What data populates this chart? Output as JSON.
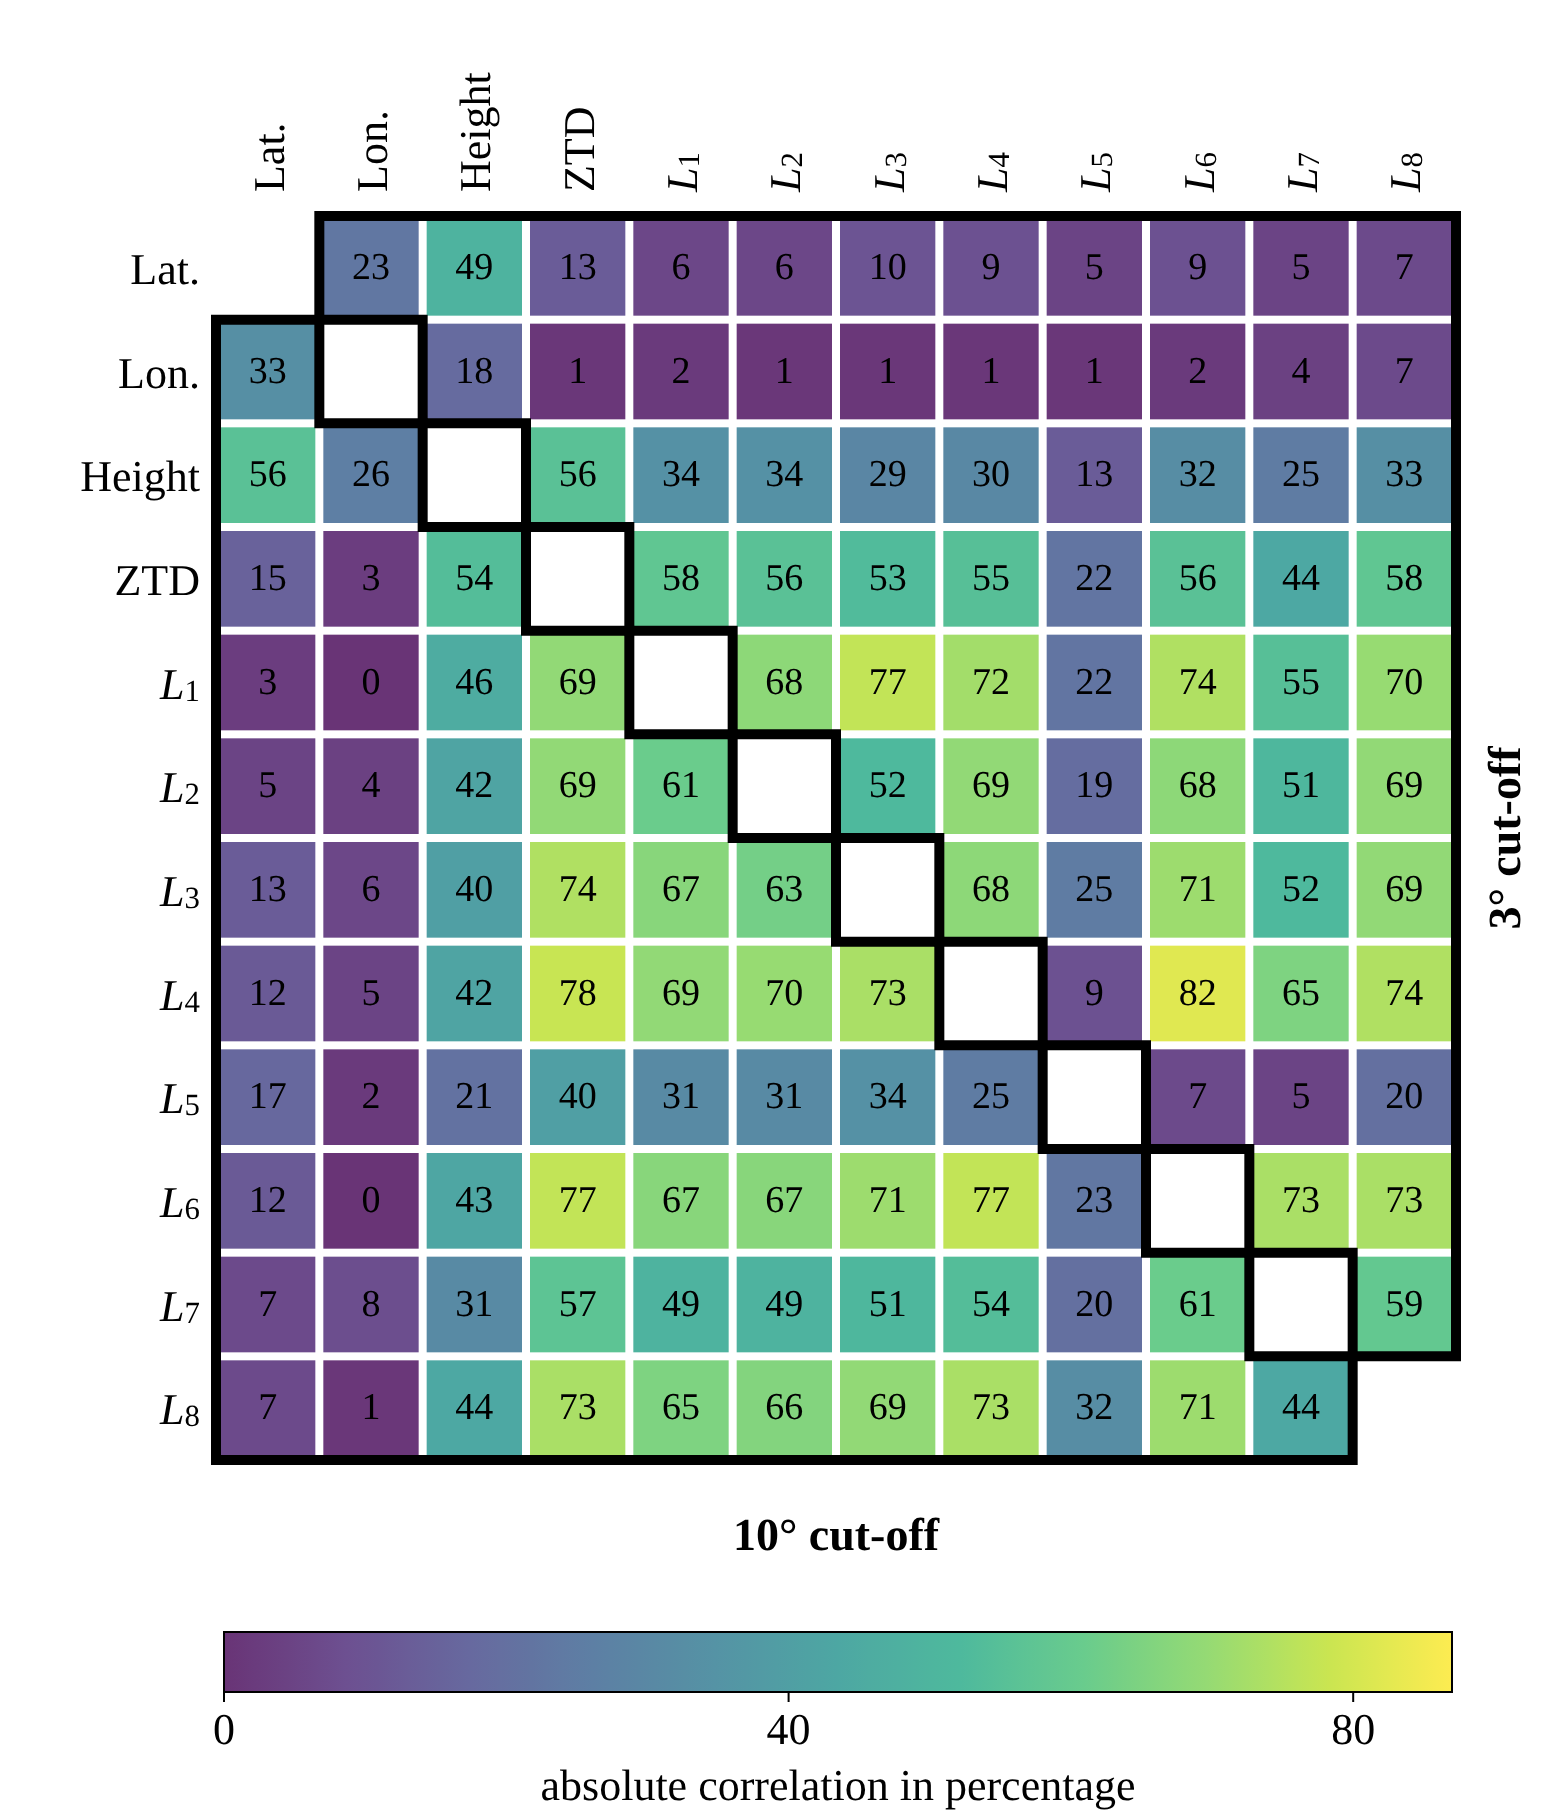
{
  "chart_data": {
    "type": "heatmap",
    "categories": [
      "Lat.",
      "Lon.",
      "Height",
      "ZTD",
      "L$_{1}$",
      "L$_{2}$",
      "L$_{3}$",
      "L$_{4}$",
      "L$_{5}$",
      "L$_{6}$",
      "L$_{7}$",
      "L$_{8}$"
    ],
    "y_categories": [
      "Lat.",
      "Lon.",
      "Height",
      "ZTD",
      "L$_{1}$",
      "L$_{2}$",
      "L$_{3}$",
      "L$_{4}$",
      "L$_{5}$",
      "L$_{6}$",
      "L$_{7}$",
      "L$_{8}$"
    ],
    "cells": [
      [
        null,
        23,
        49,
        13,
        6,
        6,
        10,
        9,
        5,
        9,
        5,
        7
      ],
      [
        33,
        null,
        18,
        1,
        2,
        1,
        1,
        1,
        1,
        2,
        4,
        7
      ],
      [
        56,
        26,
        null,
        56,
        34,
        34,
        29,
        30,
        13,
        32,
        25,
        33
      ],
      [
        15,
        3,
        54,
        null,
        58,
        56,
        53,
        55,
        22,
        56,
        44,
        58
      ],
      [
        3,
        0,
        46,
        69,
        null,
        68,
        77,
        72,
        22,
        74,
        55,
        70
      ],
      [
        5,
        4,
        42,
        69,
        61,
        null,
        52,
        69,
        19,
        68,
        51,
        69
      ],
      [
        13,
        6,
        40,
        74,
        67,
        63,
        null,
        68,
        25,
        71,
        52,
        69
      ],
      [
        12,
        5,
        42,
        78,
        69,
        70,
        73,
        null,
        9,
        82,
        65,
        74
      ],
      [
        17,
        2,
        21,
        40,
        31,
        31,
        34,
        25,
        null,
        7,
        5,
        20
      ],
      [
        12,
        0,
        43,
        77,
        67,
        67,
        71,
        77,
        23,
        null,
        73,
        73
      ],
      [
        7,
        8,
        31,
        57,
        49,
        49,
        51,
        54,
        20,
        61,
        null,
        59
      ],
      [
        7,
        1,
        44,
        73,
        65,
        66,
        69,
        73,
        32,
        71,
        44,
        null
      ]
    ],
    "xlabel": "10° cut-off",
    "y2label": "3° cut-off",
    "clabel": "absolute correlation in percentage",
    "clim": [
      0,
      87
    ],
    "cticks": [
      0,
      40,
      80
    ],
    "data_labels": true
  }
}
